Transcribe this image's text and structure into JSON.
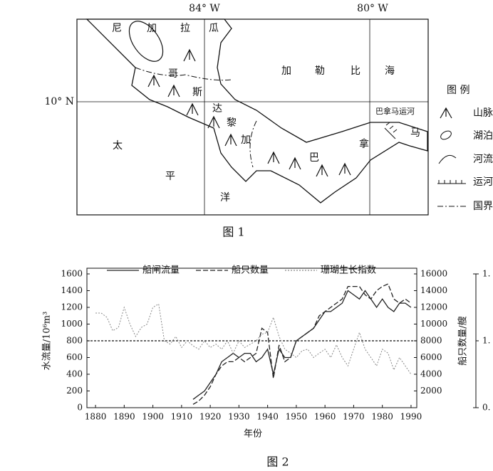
{
  "figure1": {
    "longitude_labels": [
      "84° W",
      "80° W"
    ],
    "latitude_label": "10° N",
    "nicaragua": [
      "尼",
      "加",
      "拉",
      "瓜"
    ],
    "costa_rica": [
      "哥",
      "斯",
      "达",
      "黎",
      "加"
    ],
    "caribbean": [
      "加",
      "勒",
      "比",
      "海"
    ],
    "pacific": [
      "太",
      "平",
      "洋"
    ],
    "panama": [
      "巴",
      "拿",
      "马"
    ],
    "canal": "巴拿马运河",
    "legend": {
      "title": "图 例",
      "items": [
        "山脉",
        "湖泊",
        "河流",
        "运河",
        "国界"
      ]
    },
    "caption": "图 1"
  },
  "chart_data": {
    "type": "line",
    "ylabel": "水流量/10⁶m³",
    "y2label": "船只数量/艘",
    "xlabel": "年份",
    "x": [
      1880,
      1882,
      1884,
      1886,
      1888,
      1890,
      1892,
      1894,
      1896,
      1898,
      1900,
      1902,
      1904,
      1906,
      1908,
      1910,
      1912,
      1914,
      1916,
      1918,
      1920,
      1922,
      1924,
      1926,
      1928,
      1930,
      1932,
      1934,
      1936,
      1938,
      1940,
      1942,
      1944,
      1946,
      1948,
      1950,
      1952,
      1954,
      1956,
      1958,
      1960,
      1962,
      1964,
      1966,
      1968,
      1970,
      1972,
      1974,
      1976,
      1978,
      1980,
      1982,
      1984,
      1986,
      1988,
      1990
    ],
    "series": [
      {
        "name": "船闸流量",
        "color": "#222222",
        "style": "solid",
        "values": [
          null,
          null,
          null,
          null,
          null,
          null,
          null,
          null,
          null,
          null,
          null,
          null,
          null,
          null,
          null,
          null,
          null,
          100,
          150,
          200,
          300,
          400,
          550,
          600,
          650,
          600,
          650,
          650,
          550,
          600,
          700,
          400,
          700,
          600,
          600,
          800,
          850,
          900,
          950,
          1050,
          1150,
          1150,
          1200,
          1250,
          1400,
          1350,
          1300,
          1400,
          1300,
          1200,
          1300,
          1200,
          1150,
          1250,
          1250,
          1200
        ]
      },
      {
        "name": "船只数量",
        "color": "#222222",
        "style": "dashed",
        "axis": "y2",
        "values": [
          null,
          null,
          null,
          null,
          null,
          null,
          null,
          null,
          null,
          null,
          null,
          null,
          null,
          null,
          null,
          null,
          null,
          400,
          800,
          1500,
          2500,
          4000,
          5000,
          5500,
          5500,
          6000,
          5500,
          6000,
          6500,
          9500,
          9000,
          3500,
          7500,
          5500,
          6000,
          8000,
          8500,
          9000,
          9500,
          11000,
          11500,
          12000,
          12500,
          13000,
          14500,
          14500,
          14500,
          13500,
          13000,
          14000,
          14500,
          14800,
          13000,
          12500,
          13000,
          12500
        ]
      },
      {
        "name": "珊瑚生长指数",
        "color": "#888888",
        "style": "dotted",
        "axis": "y3",
        "values": [
          1.083,
          1.083,
          1.07,
          1.03,
          1.04,
          1.1,
          1.05,
          1.013,
          1.04,
          1.05,
          1.1,
          1.11,
          1.0,
          0.99,
          1.013,
          0.98,
          1.0,
          0.985,
          0.975,
          1.0,
          0.98,
          0.99,
          0.975,
          1.0,
          0.963,
          1.0,
          0.98,
          0.99,
          1.0,
          1.02,
          1.025,
          1.07,
          1.013,
          0.975,
          0.963,
          0.95,
          0.97,
          0.975,
          0.95,
          0.963,
          0.975,
          0.95,
          0.988,
          0.95,
          0.925,
          0.975,
          1.025,
          0.975,
          0.95,
          0.925,
          0.975,
          0.963,
          0.913,
          0.95,
          0.925,
          0.9
        ]
      }
    ],
    "xlim": [
      1877,
      1992
    ],
    "xticks": [
      1880,
      1890,
      1900,
      1910,
      1920,
      1930,
      1940,
      1950,
      1960,
      1970,
      1980,
      1990
    ],
    "ylim": [
      0,
      1600
    ],
    "yticks": [
      0,
      200,
      400,
      600,
      800,
      1000,
      1200,
      1400,
      1600
    ],
    "y2lim": [
      0,
      16000
    ],
    "y2ticks": [
      2000,
      4000,
      6000,
      8000,
      10000,
      12000,
      14000,
      16000
    ],
    "y3lim": [
      0.8,
      1.2
    ],
    "y3ticks": [
      {
        "value": 1.2,
        "label": "1."
      },
      {
        "value": 1.0,
        "label": "1."
      },
      {
        "value": 0.8,
        "label": "0."
      }
    ],
    "reference_line_y3": 1.0,
    "caption": "图 2"
  }
}
